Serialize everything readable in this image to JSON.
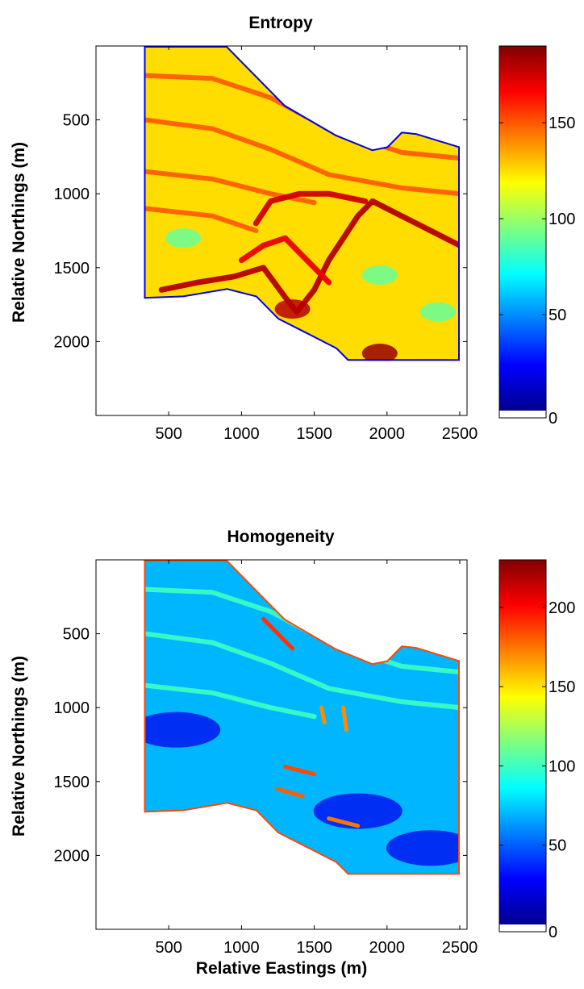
{
  "chart_data": [
    {
      "type": "heatmap",
      "title": "Entropy",
      "xlabel": "",
      "ylabel": "Relative Northings (m)",
      "xlim": [
        0,
        2550
      ],
      "ylim": [
        2500,
        0
      ],
      "x_ticks": [
        "500",
        "1000",
        "1500",
        "2000",
        "2500"
      ],
      "y_ticks": [
        "500",
        "1000",
        "1500",
        "2000"
      ],
      "colorbar": {
        "colormap": "jet",
        "range": [
          0,
          190
        ],
        "ticks": [
          "0",
          "50",
          "100",
          "150"
        ]
      },
      "region_boundary": [
        [
          330,
          0
        ],
        [
          900,
          0
        ],
        [
          1100,
          200
        ],
        [
          1300,
          400
        ],
        [
          1650,
          600
        ],
        [
          1900,
          700
        ],
        [
          2000,
          680
        ],
        [
          2100,
          580
        ],
        [
          2200,
          590
        ],
        [
          2400,
          650
        ],
        [
          2500,
          680
        ],
        [
          2500,
          2130
        ],
        [
          1730,
          2130
        ],
        [
          1650,
          2050
        ],
        [
          1450,
          1950
        ],
        [
          1250,
          1850
        ],
        [
          1100,
          1700
        ],
        [
          900,
          1650
        ],
        [
          600,
          1700
        ],
        [
          330,
          1710
        ]
      ],
      "base_value": 125,
      "features": [
        {
          "kind": "band",
          "value": 150,
          "points": [
            [
              340,
              200
            ],
            [
              800,
              220
            ],
            [
              1200,
              350
            ],
            [
              1600,
              560
            ],
            [
              2100,
              720
            ],
            [
              2500,
              760
            ]
          ]
        },
        {
          "kind": "band",
          "value": 150,
          "points": [
            [
              340,
              500
            ],
            [
              800,
              560
            ],
            [
              1200,
              700
            ],
            [
              1600,
              870
            ],
            [
              2100,
              960
            ],
            [
              2500,
              1000
            ]
          ]
        },
        {
          "kind": "band",
          "value": 150,
          "points": [
            [
              340,
              850
            ],
            [
              800,
              900
            ],
            [
              1200,
              1000
            ],
            [
              1500,
              1060
            ]
          ]
        },
        {
          "kind": "band",
          "value": 150,
          "points": [
            [
              340,
              1100
            ],
            [
              800,
              1150
            ],
            [
              1100,
              1250
            ]
          ]
        },
        {
          "kind": "ridge",
          "value": 180,
          "points": [
            [
              450,
              1650
            ],
            [
              700,
              1600
            ],
            [
              950,
              1560
            ],
            [
              1150,
              1500
            ],
            [
              1300,
              1700
            ],
            [
              1380,
              1800
            ],
            [
              1500,
              1650
            ],
            [
              1600,
              1450
            ],
            [
              1700,
              1300
            ],
            [
              1800,
              1150
            ],
            [
              1900,
              1050
            ],
            [
              2100,
              1150
            ],
            [
              2300,
              1250
            ],
            [
              2500,
              1350
            ]
          ]
        },
        {
          "kind": "ridge",
          "value": 175,
          "points": [
            [
              1100,
              1200
            ],
            [
              1200,
              1050
            ],
            [
              1400,
              1000
            ],
            [
              1600,
              1000
            ],
            [
              1850,
              1050
            ]
          ]
        },
        {
          "kind": "ridge",
          "value": 170,
          "points": [
            [
              1000,
              1450
            ],
            [
              1150,
              1350
            ],
            [
              1300,
              1300
            ],
            [
              1500,
              1500
            ],
            [
              1600,
              1600
            ]
          ]
        },
        {
          "kind": "blob",
          "value": 185,
          "points": [
            [
              1950,
              2080
            ]
          ]
        },
        {
          "kind": "blob",
          "value": 180,
          "points": [
            [
              1350,
              1780
            ]
          ]
        },
        {
          "kind": "blob",
          "value": 90,
          "points": [
            [
              1950,
              1550
            ],
            [
              600,
              1300
            ],
            [
              2350,
              1800
            ]
          ]
        }
      ]
    },
    {
      "type": "heatmap",
      "title": "Homogeneity",
      "xlabel": "Relative Eastings (m)",
      "ylabel": "Relative Northings (m)",
      "xlim": [
        0,
        2550
      ],
      "ylim": [
        2500,
        0
      ],
      "x_ticks": [
        "500",
        "1000",
        "1500",
        "2000",
        "2500"
      ],
      "y_ticks": [
        "500",
        "1000",
        "1500",
        "2000"
      ],
      "colorbar": {
        "colormap": "jet",
        "range": [
          0,
          230
        ],
        "ticks": [
          "0",
          "50",
          "100",
          "150",
          "200"
        ]
      },
      "region_boundary": [
        [
          330,
          0
        ],
        [
          900,
          0
        ],
        [
          1100,
          200
        ],
        [
          1300,
          400
        ],
        [
          1650,
          600
        ],
        [
          1900,
          700
        ],
        [
          2000,
          680
        ],
        [
          2100,
          580
        ],
        [
          2200,
          590
        ],
        [
          2400,
          650
        ],
        [
          2500,
          680
        ],
        [
          2500,
          2130
        ],
        [
          1730,
          2130
        ],
        [
          1650,
          2050
        ],
        [
          1450,
          1950
        ],
        [
          1250,
          1850
        ],
        [
          1100,
          1700
        ],
        [
          900,
          1650
        ],
        [
          600,
          1700
        ],
        [
          330,
          1710
        ]
      ],
      "base_value": 70,
      "features": [
        {
          "kind": "band",
          "value": 100,
          "points": [
            [
              340,
              200
            ],
            [
              800,
              220
            ],
            [
              1200,
              350
            ],
            [
              1600,
              560
            ],
            [
              2100,
              720
            ],
            [
              2500,
              760
            ]
          ]
        },
        {
          "kind": "band",
          "value": 100,
          "points": [
            [
              340,
              500
            ],
            [
              800,
              560
            ],
            [
              1200,
              700
            ],
            [
              1600,
              870
            ],
            [
              2100,
              960
            ],
            [
              2500,
              1000
            ]
          ]
        },
        {
          "kind": "band",
          "value": 100,
          "points": [
            [
              340,
              850
            ],
            [
              800,
              900
            ],
            [
              1200,
              1000
            ],
            [
              1500,
              1060
            ]
          ]
        },
        {
          "kind": "dark",
          "value": 25,
          "points": [
            [
              550,
              1150
            ],
            [
              1800,
              1700
            ],
            [
              2300,
              1950
            ]
          ]
        },
        {
          "kind": "streak",
          "value": 190,
          "points": [
            [
              1150,
              400
            ],
            [
              1350,
              600
            ]
          ]
        },
        {
          "kind": "streak",
          "value": 185,
          "points": [
            [
              1300,
              1400
            ],
            [
              1500,
              1450
            ]
          ]
        },
        {
          "kind": "streak",
          "value": 180,
          "points": [
            [
              1250,
              1550
            ],
            [
              1420,
              1600
            ]
          ]
        },
        {
          "kind": "streak",
          "value": 175,
          "points": [
            [
              1600,
              1750
            ],
            [
              1800,
              1800
            ]
          ]
        },
        {
          "kind": "streak",
          "value": 170,
          "points": [
            [
              1700,
              1000
            ],
            [
              1720,
              1150
            ]
          ]
        },
        {
          "kind": "streak",
          "value": 170,
          "points": [
            [
              1550,
              1000
            ],
            [
              1570,
              1100
            ]
          ]
        }
      ]
    }
  ]
}
